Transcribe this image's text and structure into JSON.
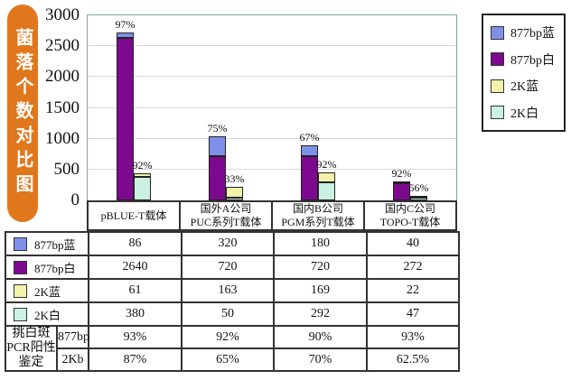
{
  "title": {
    "text": "菌落个数对比图"
  },
  "chart_data": {
    "type": "bar",
    "stacked": true,
    "title": "菌落个数对比图",
    "ylim": [
      0,
      3000
    ],
    "yticks": [
      0,
      500,
      1000,
      1500,
      2000,
      2500,
      3000
    ],
    "grid": true,
    "legend_position": "right",
    "categories": [
      [
        "pBLUE-T载体"
      ],
      [
        "国外A公司",
        "PUC系列T载体"
      ],
      [
        "国内B公司",
        "PGM系列T载体"
      ],
      [
        "国内C公司",
        "TOPO-T载体"
      ]
    ],
    "series": [
      {
        "name": "877bp蓝",
        "color": "#7e90e8",
        "values": [
          86,
          320,
          180,
          40
        ]
      },
      {
        "name": "877bp白",
        "color": "#7d0a8e",
        "values": [
          2640,
          720,
          720,
          272
        ]
      },
      {
        "name": "2K蓝",
        "color": "#f2f2aa",
        "values": [
          61,
          163,
          169,
          22
        ]
      },
      {
        "name": "2K白",
        "color": "#c9f2e2",
        "values": [
          380,
          50,
          292,
          47
        ]
      }
    ],
    "stacks": [
      [
        "877bp白",
        "877bp蓝"
      ],
      [
        "2K白",
        "2K蓝"
      ]
    ],
    "stack_labels": [
      [
        "97%",
        "92%"
      ],
      [
        "75%",
        "33%"
      ],
      [
        "67%",
        "92%"
      ],
      [
        "92%",
        "56%"
      ]
    ]
  },
  "table": {
    "rows": [
      {
        "swatch": "#7e90e8",
        "label": "877bp蓝",
        "values": [
          "86",
          "320",
          "180",
          "40"
        ]
      },
      {
        "swatch": "#7d0a8e",
        "label": "877bp白",
        "values": [
          "2640",
          "720",
          "720",
          "272"
        ]
      },
      {
        "swatch": "#f2f2aa",
        "label": "2K蓝",
        "values": [
          "61",
          "163",
          "169",
          "22"
        ]
      },
      {
        "swatch": "#c9f2e2",
        "label": "2K白",
        "values": [
          "380",
          "50",
          "292",
          "47"
        ]
      }
    ],
    "pcr": {
      "label_lines": [
        "挑白斑",
        "PCR阳性",
        "鉴定"
      ],
      "rows": [
        {
          "sub": "877bp",
          "values": [
            "93%",
            "92%",
            "90%",
            "93%"
          ]
        },
        {
          "sub": "2Kb",
          "values": [
            "87%",
            "65%",
            "70%",
            "62.5%"
          ]
        }
      ]
    }
  },
  "colors": {
    "title_bg": "#e0771c",
    "plot_border": "#79a3a3",
    "grid": "#d9d9d9",
    "table_border": "#333333"
  }
}
